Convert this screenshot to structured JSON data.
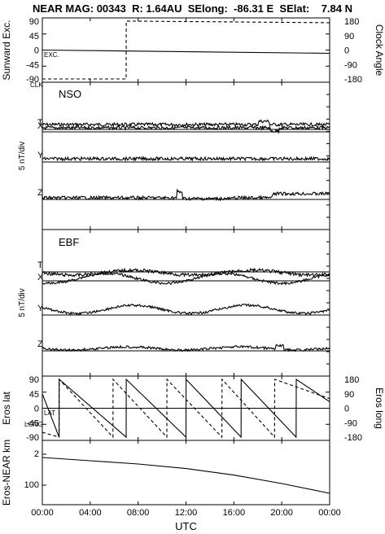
{
  "title": "NEAR MAG: 00343  R: 1.64AU  SElong:  -86.31 E  SElat:    7.84 N",
  "chart_data": [
    {
      "type": "line",
      "panel": "sunward-clock",
      "ylabel_left": "Sunward Exc.",
      "ylabel_right": "Clock Angle",
      "left_ticks": [
        "90",
        "45",
        "0",
        "-45",
        "-90"
      ],
      "right_ticks": [
        "180",
        "90",
        "0",
        "-90",
        "-180"
      ],
      "ylim_left": [
        -100,
        100
      ],
      "ylim_right": [
        -200,
        200
      ],
      "annotations": [
        "EXC.",
        "CLK"
      ],
      "series": [
        {
          "name": "EXC.",
          "x": [
            0,
            24
          ],
          "y": [
            0,
            -10
          ]
        },
        {
          "name": "CLK",
          "x": [
            0,
            7,
            7.01,
            24
          ],
          "y": [
            -180,
            -180,
            180,
            170
          ]
        }
      ]
    },
    {
      "type": "line",
      "panel": "NSO",
      "label": "NSO",
      "ylabel": "5 nT/div",
      "components": [
        "T",
        "X",
        "Y",
        "Z"
      ]
    },
    {
      "type": "line",
      "panel": "EBF",
      "label": "EBF",
      "ylabel": "5 nT/div",
      "components": [
        "T",
        "X",
        "Y",
        "Z"
      ]
    },
    {
      "type": "line",
      "panel": "eros-lat-long",
      "ylabel_left": "Eros lat",
      "ylabel_right": "Eros long",
      "left_ticks": [
        "90",
        "45",
        "0",
        "-45",
        "-90"
      ],
      "right_ticks": [
        "180",
        "90",
        "0",
        "-90",
        "-180"
      ],
      "ylim_left": [
        -100,
        100
      ],
      "annotations": [
        "LAT",
        "LONG"
      ],
      "series": [
        {
          "name": "LAT",
          "x": [
            0,
            24
          ],
          "y": [
            0,
            0
          ]
        },
        {
          "name": "LONG",
          "x": [
            0,
            1.4,
            1.41,
            5.9,
            5.91,
            10.4,
            10.41,
            15,
            15.01,
            19.4,
            19.41,
            24
          ],
          "y": [
            -150,
            -180,
            180,
            -180,
            180,
            -180,
            180,
            -180,
            180,
            -180,
            180,
            60
          ]
        },
        {
          "name": "",
          "x": [
            0,
            1.4,
            1.41,
            7,
            7.01,
            12,
            12.01,
            16.6,
            16.61,
            21.2,
            21.21,
            24
          ],
          "y": [
            45,
            -90,
            90,
            -90,
            90,
            -90,
            90,
            -90,
            90,
            -90,
            90,
            20
          ]
        }
      ]
    },
    {
      "type": "line",
      "panel": "range",
      "ylabel": "Eros-NEAR km",
      "tick_labels": [
        "2",
        "100"
      ],
      "series": [
        {
          "name": "",
          "x": [
            0,
            4,
            8,
            12,
            16,
            20,
            24
          ],
          "y": [
            1.95,
            1.9,
            1.85,
            1.78,
            1.68,
            1.55,
            1.4
          ]
        }
      ]
    }
  ],
  "x_axis": {
    "label": "UTC",
    "ticks": [
      "00:00",
      "04:00",
      "08:00",
      "12:00",
      "16:00",
      "20:00",
      "00:00"
    ],
    "range_hours": [
      0,
      24
    ]
  }
}
